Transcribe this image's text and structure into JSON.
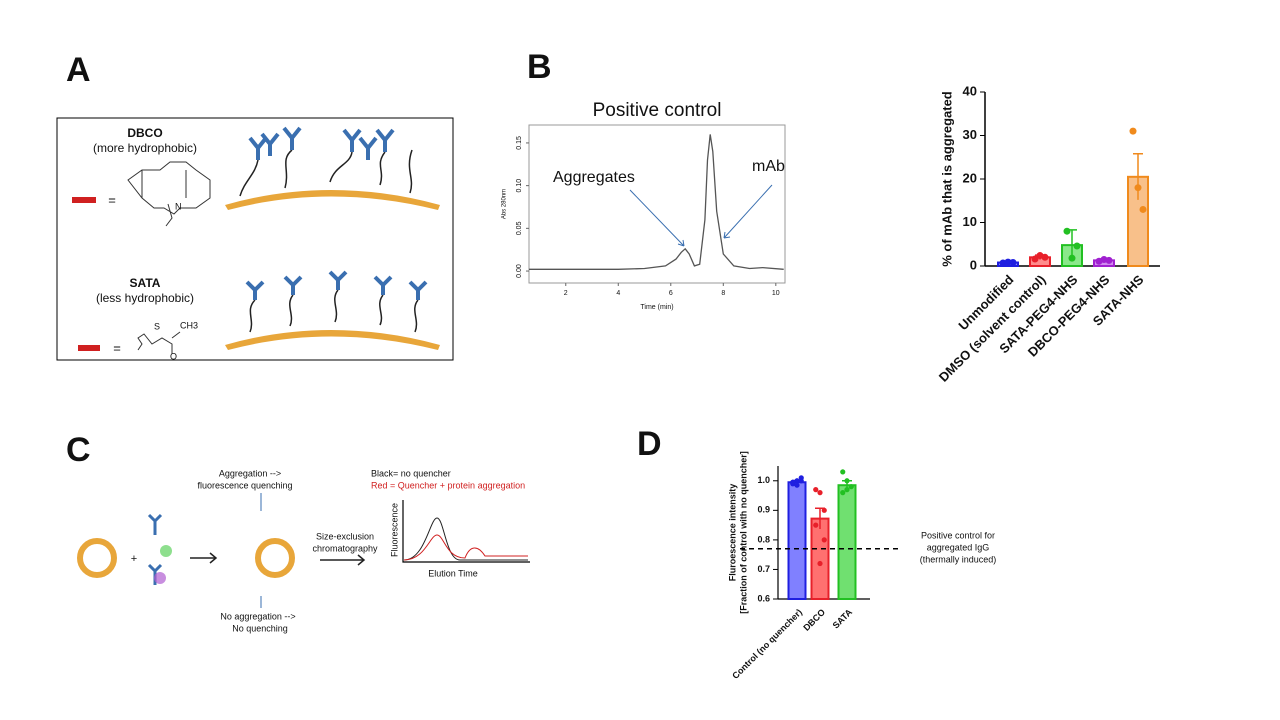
{
  "panels": [
    "A",
    "B",
    "C",
    "D"
  ],
  "diagram_a": {
    "dbco_title": "DBCO",
    "dbco_note": "(more hydrophobic)",
    "sata_title": "SATA",
    "sata_note": "(less hydrophobic)",
    "equals": "=",
    "atom_n": "N",
    "atom_s": "S",
    "group_ch3": "CH3",
    "atom_o": "O"
  },
  "diagram_c": {
    "plus": "+",
    "top_note_1": "Aggregation -->",
    "top_note_2": "fluorescence quenching",
    "sec_1": "Size-exclusion",
    "sec_2": "chromatography",
    "key_black": "Black= no quencher",
    "key_red": "Red = Quencher + protein aggregation",
    "y_label": "Fluorescence",
    "x_label": "Elution Time",
    "bottom_note_1": "No aggregation -->",
    "bottom_note_2": "No quenching"
  },
  "chart_data": [
    {
      "type": "line",
      "title": "Positive control",
      "y_label": "Abs 280nm",
      "x_label": "Time (min)",
      "color": "#555555",
      "x": [
        0.6,
        2,
        4,
        5,
        5.8,
        6.2,
        6.4,
        6.55,
        6.7,
        6.9,
        7.1,
        7.3,
        7.4,
        7.5,
        7.6,
        7.75,
        8,
        8.4,
        9,
        9.5,
        10.3
      ],
      "values": [
        0.002,
        0.002,
        0.002,
        0.003,
        0.006,
        0.014,
        0.022,
        0.026,
        0.02,
        0.006,
        0.008,
        0.06,
        0.13,
        0.16,
        0.14,
        0.07,
        0.02,
        0.006,
        0.003,
        0.004,
        0.002
      ],
      "xlim": [
        0.6,
        10.35
      ],
      "xticks": [
        2,
        4,
        6,
        8,
        10
      ],
      "ylim": [
        -0.014,
        0.171
      ],
      "yticks": [
        {
          "value": 0,
          "label": "0.00"
        },
        0.05,
        {
          "value": 0.1,
          "label": "0.10"
        },
        0.15
      ],
      "annotations": [
        "Aggregates",
        "mAb"
      ]
    },
    {
      "type": "bar",
      "y_label": "% of mAb that is aggregated",
      "categories": [
        "Unmodified",
        "DMSO (solvent control)",
        "SATA-PEG4-NHS",
        "DBCO-PEG4-NHS",
        "SATA-NHS"
      ],
      "values": [
        0.8,
        2,
        4.8,
        1.3,
        20.5
      ],
      "errors": [
        0.2,
        0.5,
        3.5,
        0.3,
        5.3
      ],
      "points": [
        [
          0.7,
          0.9,
          0.8
        ],
        [
          1.6,
          2.4,
          2
        ],
        [
          8,
          1.8,
          4.6
        ],
        [
          1.1,
          1.5,
          1.3
        ],
        [
          31,
          18,
          13
        ]
      ],
      "colors": [
        "#1f1fe0",
        "#e8202a",
        "#22c022",
        "#a020d0",
        "#f08a1c"
      ],
      "fills": [
        "#8a8aff",
        "#ff8c8c",
        "#8ae88a",
        "#d08af0",
        "#f8c08a"
      ],
      "ylim": [
        0,
        40
      ],
      "yticks": [
        0,
        10,
        20,
        30,
        40
      ]
    },
    {
      "type": "bar",
      "y_label": [
        "Fluroescence intensity",
        "[Fraction of control with no quencher]"
      ],
      "categories": [
        "Control (no quencher)",
        "DBCO",
        "SATA"
      ],
      "values": [
        0.995,
        0.872,
        0.985
      ],
      "errors": [
        0.006,
        0.035,
        0.015
      ],
      "points": [
        [
          0.99,
          1.0,
          1.01,
          0.995,
          0.985,
          1.0
        ],
        [
          0.97,
          0.96,
          0.9,
          0.85,
          0.72,
          0.8
        ],
        [
          1.03,
          1.0,
          0.98,
          0.96,
          0.97
        ]
      ],
      "colors": [
        "#1f1fe0",
        "#e8202a",
        "#22c022"
      ],
      "fills": [
        "#8080ff",
        "#ff7070",
        "#70e070"
      ],
      "ylim": [
        0.6,
        1.05
      ],
      "yticks": [
        0.6,
        0.7,
        0.8,
        0.9,
        {
          "value": 1.0,
          "label": "1.0"
        }
      ],
      "reference_line": 0.77,
      "reference_label": [
        "Positive control for",
        "aggregated IgG",
        "(thermally induced)"
      ]
    }
  ]
}
